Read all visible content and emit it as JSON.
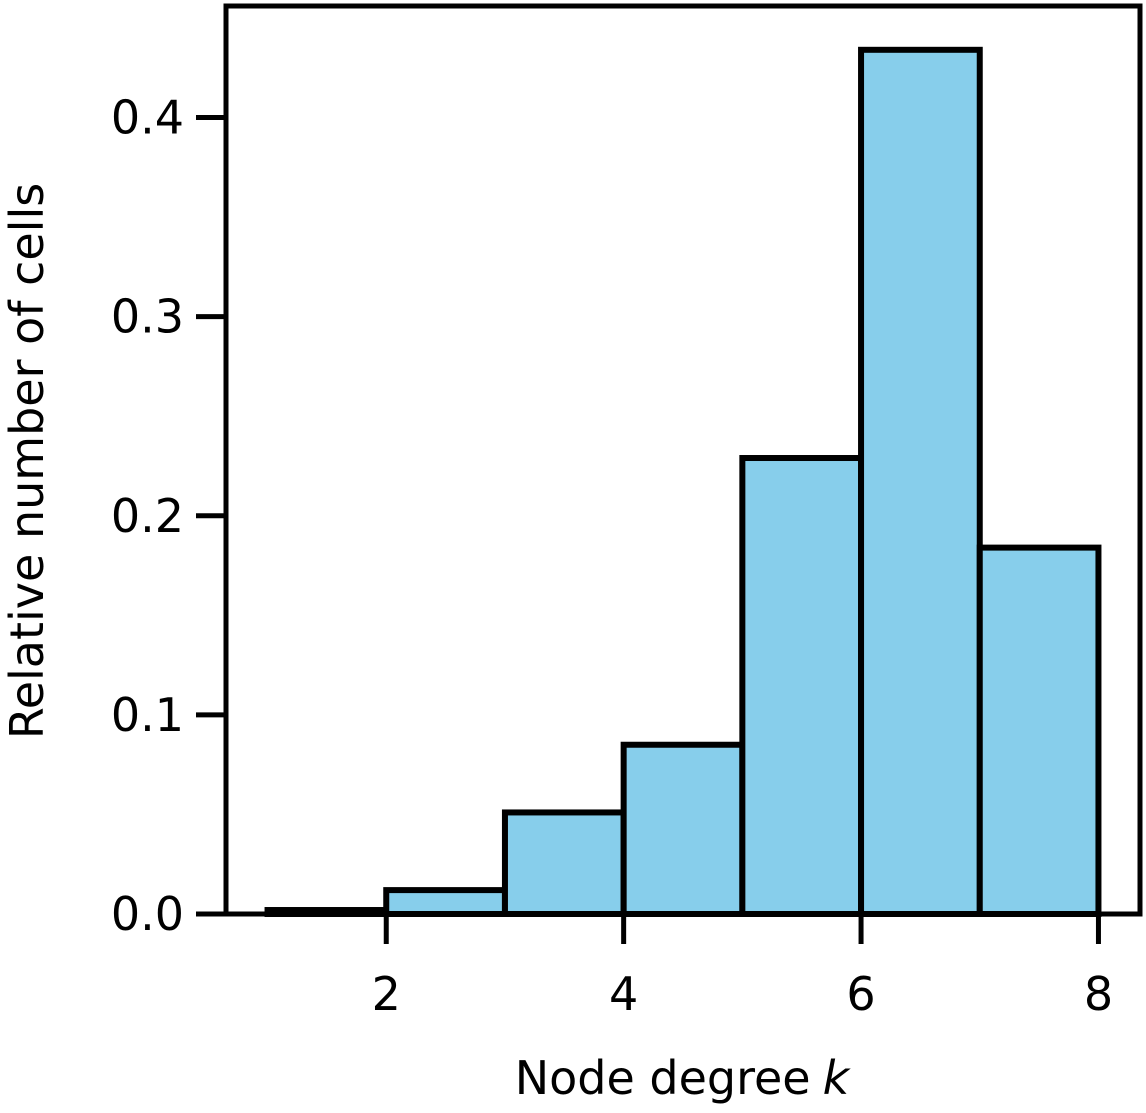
{
  "chart_data": {
    "type": "bar",
    "title": "",
    "xlabel": "Node degree",
    "xlabel_var": "k",
    "ylabel": "Relative number of cells",
    "bins": [
      {
        "x0": 1,
        "x1": 2,
        "value": 0.002
      },
      {
        "x0": 2,
        "x1": 3,
        "value": 0.012
      },
      {
        "x0": 3,
        "x1": 4,
        "value": 0.051
      },
      {
        "x0": 4,
        "x1": 5,
        "value": 0.085
      },
      {
        "x0": 5,
        "x1": 6,
        "value": 0.229
      },
      {
        "x0": 6,
        "x1": 7,
        "value": 0.434
      },
      {
        "x0": 7,
        "x1": 8,
        "value": 0.184
      }
    ],
    "xlim": [
      0.65,
      8.35
    ],
    "ylim": [
      0,
      0.456
    ],
    "xticks": [
      2,
      4,
      6,
      8
    ],
    "xtick_labels": [
      "2",
      "4",
      "6",
      "8"
    ],
    "yticks": [
      0.0,
      0.1,
      0.2,
      0.3,
      0.4
    ],
    "ytick_labels": [
      "0.0",
      "0.1",
      "0.2",
      "0.3",
      "0.4"
    ],
    "grid": false,
    "bar_color": "#87CEEB",
    "edge_color": "#000000"
  }
}
